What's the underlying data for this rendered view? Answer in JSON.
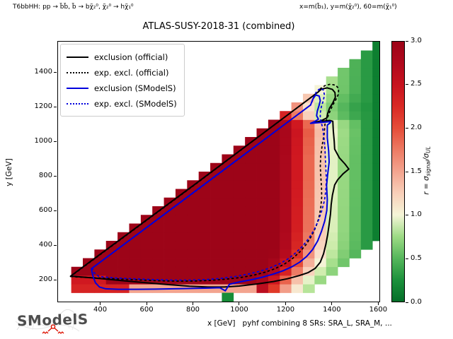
{
  "annotations": {
    "left": "T6bbHH: pp → b̃b̃, b̃ → bχ̃₂⁰, χ̃₂⁰ → hχ̃₁⁰",
    "right": "x=m(b̃₁), y=m(χ̃₂⁰), 60=m(χ̃₁⁰)"
  },
  "title": "ATLAS-SUSY-2018-31 (combined)",
  "axes": {
    "xlabel": "x [GeV]   pyhf combining 8 SRs: SRA_L, SRA_M, ...",
    "ylabel": "y [GeV]",
    "x_ticks": [
      400,
      600,
      800,
      1000,
      1200,
      1400,
      1600
    ],
    "y_ticks": [
      200,
      400,
      600,
      800,
      1000,
      1200,
      1400
    ],
    "x_range": [
      215,
      1608
    ],
    "y_range": [
      70,
      1580
    ]
  },
  "colorbar": {
    "label_prefix": "r = σ",
    "label_sub1": "signal",
    "label_mid": "/σ",
    "label_sub2": "UL",
    "ticks": [
      "0.0",
      "0.5",
      "1.0",
      "1.5",
      "2.0",
      "2.5",
      "3.0"
    ],
    "range": [
      0,
      3
    ]
  },
  "legend": {
    "items": [
      {
        "label": "exclusion (official)",
        "color": "#000000",
        "style": "solid"
      },
      {
        "label": "exp. excl. (official)",
        "color": "#000000",
        "style": "dotted"
      },
      {
        "label": "exclusion (SModelS)",
        "color": "#0000dd",
        "style": "solid"
      },
      {
        "label": "exp. excl. (SModelS)",
        "color": "#0000dd",
        "style": "dotted"
      }
    ]
  },
  "logo": {
    "text": "SModelS"
  },
  "chart_data": {
    "type": "heatmap",
    "title": "ATLAS-SUSY-2018-31 (combined)",
    "xlabel": "x [GeV]",
    "ylabel": "y [GeV]",
    "x_range": [
      215,
      1608
    ],
    "y_range": [
      70,
      1580
    ],
    "grid": false,
    "colorbar_label": "r = sigma_signal / sigma_UL",
    "colorbar_range": [
      0,
      3
    ],
    "cell_size_gev": 50,
    "grid_region": {
      "x_min": 300,
      "x_max": 1650,
      "y_min": 150,
      "min_x_minus_y": 50,
      "max_x_minus_y": 1150,
      "note": "cells exist on a 50 GeV grid between the kinematic diagonal y=x-60 and the lower-right staircase x-y=1150"
    },
    "colormap_stops": [
      [
        0.0,
        "#046e28"
      ],
      [
        0.2,
        "#138a36"
      ],
      [
        0.35,
        "#2f9e47"
      ],
      [
        0.55,
        "#63bf63"
      ],
      [
        0.75,
        "#9ddb85"
      ],
      [
        0.9,
        "#cdecab"
      ],
      [
        1.0,
        "#f5f5d8"
      ],
      [
        1.15,
        "#f9e0cb"
      ],
      [
        1.35,
        "#f6bda6"
      ],
      [
        1.6,
        "#f19480"
      ],
      [
        1.85,
        "#ea6a52"
      ],
      [
        2.1,
        "#e13a28"
      ],
      [
        2.4,
        "#d01820"
      ],
      [
        2.7,
        "#b40a1e"
      ],
      [
        3.0,
        "#9d0418"
      ]
    ],
    "r_equals_1_curve_x_by_y": [
      [
        100,
        1240
      ],
      [
        150,
        1262
      ],
      [
        200,
        1292
      ],
      [
        250,
        1330
      ],
      [
        300,
        1352
      ],
      [
        350,
        1368
      ],
      [
        400,
        1378
      ],
      [
        500,
        1385
      ],
      [
        600,
        1386
      ],
      [
        700,
        1388
      ],
      [
        800,
        1390
      ],
      [
        900,
        1390
      ],
      [
        1000,
        1393
      ],
      [
        1060,
        1396
      ],
      [
        1100,
        1390
      ],
      [
        1150,
        1330
      ],
      [
        1200,
        1318
      ],
      [
        1250,
        1338
      ],
      [
        1300,
        1352
      ],
      [
        1600,
        1360
      ]
    ],
    "r_vs_distance_from_curve": [
      [
        -230,
        3.05
      ],
      [
        -170,
        2.7
      ],
      [
        -120,
        2.2
      ],
      [
        -80,
        1.75
      ],
      [
        -45,
        1.35
      ],
      [
        0,
        1.0
      ],
      [
        55,
        0.75
      ],
      [
        110,
        0.55
      ],
      [
        180,
        0.38
      ],
      [
        280,
        0.2
      ],
      [
        600,
        0.08
      ]
    ],
    "row_overrides": [
      {
        "y": 150,
        "segments": [
          {
            "x_max": 520,
            "r": 2.3
          },
          {
            "x_max": 1080,
            "r": 1.5
          }
        ]
      },
      {
        "y": 200,
        "segments": [
          {
            "x_max": 420,
            "r": 2.4
          }
        ]
      }
    ],
    "column_overrides": [
      {
        "x_min": 1560,
        "r_max": 0.12
      },
      {
        "x_min": 1510,
        "r_max": 0.32
      }
    ],
    "special_cells": [
      {
        "x": 950,
        "y": 100,
        "r": 0.22
      },
      {
        "x": 1600,
        "y": 1600,
        "r": 0.1
      }
    ],
    "contours": [
      {
        "name": "exclusion (official)",
        "color": "#000000",
        "style": "solid",
        "width": 2,
        "points": [
          [
            272,
            221
          ],
          [
            805,
            748
          ],
          [
            1338,
            1282
          ],
          [
            1355,
            1302
          ],
          [
            1380,
            1309
          ],
          [
            1402,
            1300
          ],
          [
            1413,
            1282
          ],
          [
            1415,
            1255
          ],
          [
            1404,
            1222
          ],
          [
            1390,
            1192
          ],
          [
            1382,
            1162
          ],
          [
            1378,
            1135
          ],
          [
            1352,
            1118
          ],
          [
            1326,
            1110
          ],
          [
            1356,
            1116
          ],
          [
            1390,
            1121
          ],
          [
            1404,
            1116
          ],
          [
            1406,
            1060
          ],
          [
            1410,
            1000
          ],
          [
            1412,
            955
          ],
          [
            1432,
            905
          ],
          [
            1456,
            870
          ],
          [
            1473,
            840
          ],
          [
            1448,
            812
          ],
          [
            1425,
            778
          ],
          [
            1412,
            748
          ],
          [
            1402,
            688
          ],
          [
            1397,
            635
          ],
          [
            1394,
            580
          ],
          [
            1388,
            520
          ],
          [
            1382,
            462
          ],
          [
            1374,
            405
          ],
          [
            1364,
            350
          ],
          [
            1350,
            302
          ],
          [
            1328,
            266
          ],
          [
            1298,
            242
          ],
          [
            1258,
            224
          ],
          [
            1208,
            206
          ],
          [
            1148,
            190
          ],
          [
            1078,
            176
          ],
          [
            1000,
            164
          ],
          [
            935,
            158
          ],
          [
            865,
            158
          ],
          [
            785,
            163
          ],
          [
            695,
            172
          ],
          [
            595,
            183
          ],
          [
            495,
            195
          ],
          [
            395,
            208
          ],
          [
            320,
            216
          ],
          [
            272,
            221
          ]
        ]
      },
      {
        "name": "exp. excl. (official)",
        "color": "#000000",
        "style": "dotted",
        "width": 1.8,
        "points": [
          [
            272,
            219
          ],
          [
            805,
            746
          ],
          [
            1344,
            1288
          ],
          [
            1352,
            1306
          ],
          [
            1370,
            1322
          ],
          [
            1392,
            1330
          ],
          [
            1416,
            1325
          ],
          [
            1429,
            1306
          ],
          [
            1428,
            1272
          ],
          [
            1416,
            1238
          ],
          [
            1402,
            1205
          ],
          [
            1392,
            1175
          ],
          [
            1384,
            1148
          ],
          [
            1376,
            1122
          ],
          [
            1370,
            1098
          ],
          [
            1366,
            1038
          ],
          [
            1358,
            978
          ],
          [
            1352,
            918
          ],
          [
            1350,
            858
          ],
          [
            1352,
            798
          ],
          [
            1355,
            738
          ],
          [
            1356,
            678
          ],
          [
            1352,
            618
          ],
          [
            1344,
            558
          ],
          [
            1330,
            503
          ],
          [
            1312,
            453
          ],
          [
            1290,
            406
          ],
          [
            1262,
            362
          ],
          [
            1230,
            323
          ],
          [
            1194,
            290
          ],
          [
            1154,
            264
          ],
          [
            1110,
            243
          ],
          [
            1060,
            226
          ],
          [
            1005,
            213
          ],
          [
            945,
            204
          ],
          [
            880,
            197
          ],
          [
            810,
            193
          ],
          [
            730,
            192
          ],
          [
            640,
            195
          ],
          [
            550,
            200
          ],
          [
            460,
            206
          ],
          [
            370,
            212
          ],
          [
            300,
            216
          ],
          [
            272,
            219
          ]
        ]
      },
      {
        "name": "exclusion (SModelS)",
        "color": "#0000dd",
        "style": "solid",
        "width": 2,
        "points": [
          [
            362,
            264
          ],
          [
            840,
            742
          ],
          [
            1308,
            1210
          ],
          [
            1318,
            1245
          ],
          [
            1330,
            1268
          ],
          [
            1345,
            1262
          ],
          [
            1350,
            1235
          ],
          [
            1344,
            1205
          ],
          [
            1337,
            1175
          ],
          [
            1334,
            1148
          ],
          [
            1342,
            1128
          ],
          [
            1326,
            1115
          ],
          [
            1308,
            1104
          ],
          [
            1340,
            1108
          ],
          [
            1376,
            1112
          ],
          [
            1395,
            1114
          ],
          [
            1392,
            1106
          ],
          [
            1380,
            1094
          ],
          [
            1380,
            1020
          ],
          [
            1386,
            945
          ],
          [
            1388,
            880
          ],
          [
            1381,
            800
          ],
          [
            1377,
            745
          ],
          [
            1380,
            662
          ],
          [
            1378,
            600
          ],
          [
            1369,
            540
          ],
          [
            1355,
            480
          ],
          [
            1339,
            425
          ],
          [
            1317,
            375
          ],
          [
            1291,
            335
          ],
          [
            1261,
            302
          ],
          [
            1227,
            275
          ],
          [
            1189,
            252
          ],
          [
            1147,
            233
          ],
          [
            1100,
            215
          ],
          [
            1052,
            200
          ],
          [
            1002,
            188
          ],
          [
            958,
            174
          ],
          [
            940,
            136
          ],
          [
            916,
            154
          ],
          [
            868,
            152
          ],
          [
            798,
            150
          ],
          [
            718,
            148
          ],
          [
            638,
            146
          ],
          [
            558,
            145
          ],
          [
            478,
            145
          ],
          [
            424,
            148
          ],
          [
            397,
            158
          ],
          [
            380,
            182
          ],
          [
            370,
            216
          ],
          [
            364,
            248
          ],
          [
            362,
            264
          ]
        ]
      },
      {
        "name": "exp. excl. (SModelS)",
        "color": "#0000dd",
        "style": "dotted",
        "width": 1.8,
        "points": [
          [
            366,
            268
          ],
          [
            840,
            740
          ],
          [
            1310,
            1212
          ],
          [
            1320,
            1252
          ],
          [
            1334,
            1288
          ],
          [
            1350,
            1306
          ],
          [
            1364,
            1296
          ],
          [
            1368,
            1266
          ],
          [
            1362,
            1232
          ],
          [
            1354,
            1198
          ],
          [
            1350,
            1165
          ],
          [
            1350,
            1135
          ],
          [
            1354,
            1108
          ],
          [
            1360,
            1078
          ],
          [
            1366,
            1018
          ],
          [
            1370,
            958
          ],
          [
            1372,
            898
          ],
          [
            1374,
            838
          ],
          [
            1376,
            778
          ],
          [
            1374,
            718
          ],
          [
            1368,
            658
          ],
          [
            1356,
            598
          ],
          [
            1342,
            543
          ],
          [
            1324,
            490
          ],
          [
            1302,
            442
          ],
          [
            1276,
            398
          ],
          [
            1246,
            358
          ],
          [
            1212,
            322
          ],
          [
            1174,
            292
          ],
          [
            1132,
            268
          ],
          [
            1086,
            248
          ],
          [
            1036,
            232
          ],
          [
            980,
            218
          ],
          [
            920,
            208
          ],
          [
            855,
            201
          ],
          [
            785,
            198
          ],
          [
            710,
            198
          ],
          [
            630,
            201
          ],
          [
            550,
            205
          ],
          [
            470,
            210
          ],
          [
            395,
            218
          ],
          [
            374,
            240
          ],
          [
            366,
            268
          ]
        ]
      }
    ]
  }
}
